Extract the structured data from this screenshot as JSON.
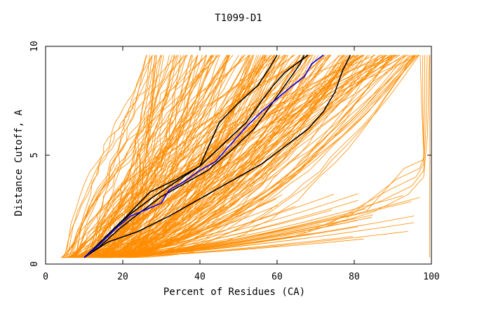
{
  "chart_data": {
    "type": "line",
    "title": "T1099-D1",
    "xlabel": "Percent of Residues (CA)",
    "ylabel": "Distance Cutoff, A",
    "xlim": [
      0,
      100
    ],
    "ylim": [
      0,
      10
    ],
    "x_ticks": [
      "0",
      "20",
      "40",
      "60",
      "80",
      "100"
    ],
    "y_ticks": [
      "0",
      "5",
      "10"
    ],
    "grid": false,
    "legend": "none",
    "colors": {
      "bundle": "#ff8c00",
      "highlight_black": "#000000",
      "highlight_blue": "#0000ff"
    },
    "series": [
      {
        "color": "#000000",
        "x": [
          10,
          13,
          17,
          22,
          28,
          34,
          40,
          45,
          50,
          55,
          58,
          60
        ],
        "y": [
          0.3,
          0.8,
          1.5,
          2.3,
          3.1,
          3.8,
          4.5,
          6.5,
          7.4,
          8.2,
          9.0,
          9.6
        ]
      },
      {
        "color": "#000000",
        "x": [
          10,
          14,
          19,
          24,
          30,
          36,
          42,
          48,
          54,
          58,
          62,
          66,
          67
        ],
        "y": [
          0.3,
          0.8,
          1.6,
          2.3,
          3.1,
          3.7,
          4.3,
          5.2,
          6.2,
          7.2,
          8.2,
          9.2,
          9.6
        ]
      },
      {
        "color": "#000000",
        "x": [
          10,
          13,
          17,
          21,
          27,
          34,
          40,
          46,
          52,
          56,
          59,
          62,
          65,
          68
        ],
        "y": [
          0.3,
          0.8,
          1.5,
          2.2,
          3.3,
          3.9,
          4.5,
          5.5,
          6.5,
          7.5,
          8.2,
          8.8,
          9.2,
          9.6
        ]
      },
      {
        "color": "#000000",
        "x": [
          10,
          16,
          24,
          32,
          38,
          44,
          50,
          56,
          62,
          68,
          72,
          75,
          77,
          79
        ],
        "y": [
          0.3,
          1.0,
          1.5,
          2.2,
          2.8,
          3.4,
          4.0,
          4.6,
          5.4,
          6.2,
          7.0,
          7.9,
          8.9,
          9.6
        ]
      },
      {
        "color": "#0000ff",
        "x": [
          10,
          14,
          18,
          22,
          26,
          30,
          32,
          36,
          40,
          44,
          48,
          52,
          56,
          60,
          64,
          67,
          69,
          72
        ],
        "y": [
          0.3,
          0.9,
          1.6,
          2.2,
          2.5,
          2.8,
          3.4,
          3.8,
          4.3,
          4.7,
          5.5,
          6.3,
          7.0,
          7.6,
          8.2,
          8.6,
          9.2,
          9.6
        ]
      }
    ]
  }
}
